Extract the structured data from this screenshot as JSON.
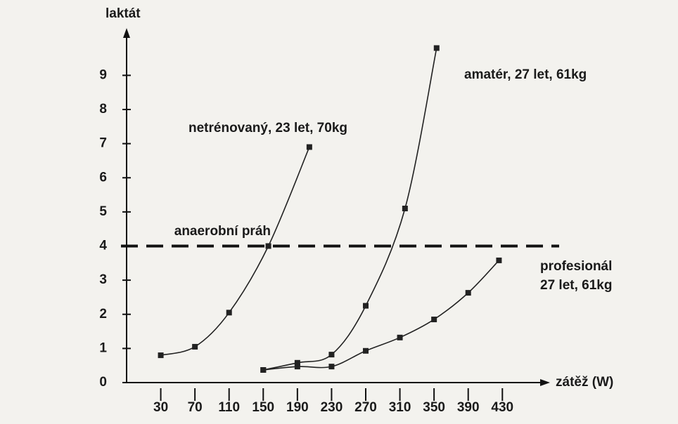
{
  "chart_data": {
    "type": "line",
    "y_label": "laktát",
    "x_label": "zátěž (W)",
    "xlim": [
      -10,
      480
    ],
    "ylim": [
      0,
      10.2
    ],
    "xticks": [
      30,
      70,
      110,
      150,
      190,
      230,
      270,
      310,
      350,
      390,
      430
    ],
    "yticks": [
      0,
      1,
      2,
      3,
      4,
      5,
      6,
      7,
      8,
      9
    ],
    "threshold": {
      "value": 4,
      "label": "anaerobní práh"
    },
    "series": [
      {
        "label": [
          "netrénovaný, 23 let, 70kg"
        ],
        "color": "#222222",
        "x": [
          30,
          70,
          110,
          156,
          204
        ],
        "values": [
          0.8,
          1.05,
          2.05,
          4.0,
          6.9
        ]
      },
      {
        "label": [
          "amatér, 27 let, 61kg"
        ],
        "color": "#222222",
        "x": [
          150,
          190,
          230,
          270,
          316,
          353
        ],
        "values": [
          0.37,
          0.58,
          0.82,
          2.25,
          5.1,
          9.8
        ]
      },
      {
        "label": [
          "profesionál",
          "27 let, 61kg"
        ],
        "color": "#222222",
        "x": [
          150,
          190,
          230,
          270,
          310,
          350,
          390,
          426
        ],
        "values": [
          0.37,
          0.47,
          0.47,
          0.93,
          1.32,
          1.85,
          2.63,
          3.58
        ]
      }
    ]
  }
}
